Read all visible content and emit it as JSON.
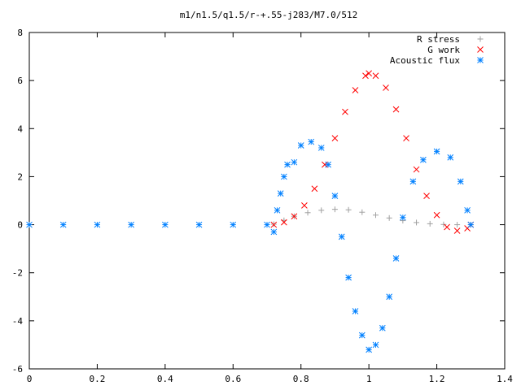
{
  "chart_data": {
    "type": "scatter",
    "title": "m1/n1.5/q1.5/r-+.55-j283/M7.0/512",
    "xlabel": "",
    "ylabel": "",
    "xlim": [
      0,
      1.4
    ],
    "ylim": [
      -6,
      8
    ],
    "x_ticks": [
      "0",
      "0.2",
      "0.4",
      "0.6",
      "0.8",
      "1",
      "1.2",
      "1.4"
    ],
    "y_ticks": [
      "-6",
      "-4",
      "-2",
      "0",
      "2",
      "4",
      "6",
      "8"
    ],
    "grid": false,
    "legend_position": "top-right",
    "series": [
      {
        "name": "R stress",
        "marker": "+",
        "color": "#a0a0a0",
        "points": [
          [
            0.72,
            0.02
          ],
          [
            0.75,
            0.18
          ],
          [
            0.78,
            0.35
          ],
          [
            0.82,
            0.5
          ],
          [
            0.86,
            0.6
          ],
          [
            0.9,
            0.64
          ],
          [
            0.94,
            0.62
          ],
          [
            0.98,
            0.52
          ],
          [
            1.02,
            0.4
          ],
          [
            1.06,
            0.28
          ],
          [
            1.1,
            0.17
          ],
          [
            1.14,
            0.09
          ],
          [
            1.18,
            0.04
          ],
          [
            1.22,
            0.01
          ],
          [
            1.26,
            0.0
          ],
          [
            1.3,
            0.0
          ]
        ]
      },
      {
        "name": "G work",
        "marker": "x",
        "color": "#ff0000",
        "points": [
          [
            0.72,
            0.0
          ],
          [
            0.75,
            0.1
          ],
          [
            0.78,
            0.35
          ],
          [
            0.81,
            0.8
          ],
          [
            0.84,
            1.5
          ],
          [
            0.87,
            2.5
          ],
          [
            0.9,
            3.6
          ],
          [
            0.93,
            4.7
          ],
          [
            0.96,
            5.6
          ],
          [
            0.99,
            6.2
          ],
          [
            1.0,
            6.3
          ],
          [
            1.02,
            6.2
          ],
          [
            1.05,
            5.7
          ],
          [
            1.08,
            4.8
          ],
          [
            1.11,
            3.6
          ],
          [
            1.14,
            2.3
          ],
          [
            1.17,
            1.2
          ],
          [
            1.2,
            0.4
          ],
          [
            1.23,
            -0.1
          ],
          [
            1.26,
            -0.25
          ],
          [
            1.29,
            -0.15
          ],
          [
            1.3,
            0.0
          ]
        ]
      },
      {
        "name": "Acoustic flux",
        "marker": "*",
        "color": "#0080ff",
        "points": [
          [
            0.0,
            0.0
          ],
          [
            0.1,
            0.0
          ],
          [
            0.2,
            0.0
          ],
          [
            0.3,
            0.0
          ],
          [
            0.4,
            0.0
          ],
          [
            0.5,
            0.0
          ],
          [
            0.6,
            0.0
          ],
          [
            0.7,
            0.0
          ],
          [
            0.72,
            -0.3
          ],
          [
            0.73,
            0.6
          ],
          [
            0.74,
            1.3
          ],
          [
            0.75,
            2.0
          ],
          [
            0.76,
            2.5
          ],
          [
            0.78,
            2.6
          ],
          [
            0.8,
            3.3
          ],
          [
            0.83,
            3.45
          ],
          [
            0.86,
            3.2
          ],
          [
            0.88,
            2.5
          ],
          [
            0.9,
            1.2
          ],
          [
            0.92,
            -0.5
          ],
          [
            0.94,
            -2.2
          ],
          [
            0.96,
            -3.6
          ],
          [
            0.98,
            -4.6
          ],
          [
            1.0,
            -5.2
          ],
          [
            1.02,
            -5.0
          ],
          [
            1.04,
            -4.3
          ],
          [
            1.06,
            -3.0
          ],
          [
            1.08,
            -1.4
          ],
          [
            1.1,
            0.3
          ],
          [
            1.13,
            1.8
          ],
          [
            1.16,
            2.7
          ],
          [
            1.2,
            3.05
          ],
          [
            1.24,
            2.8
          ],
          [
            1.27,
            1.8
          ],
          [
            1.29,
            0.6
          ],
          [
            1.3,
            0.0
          ]
        ]
      }
    ]
  }
}
